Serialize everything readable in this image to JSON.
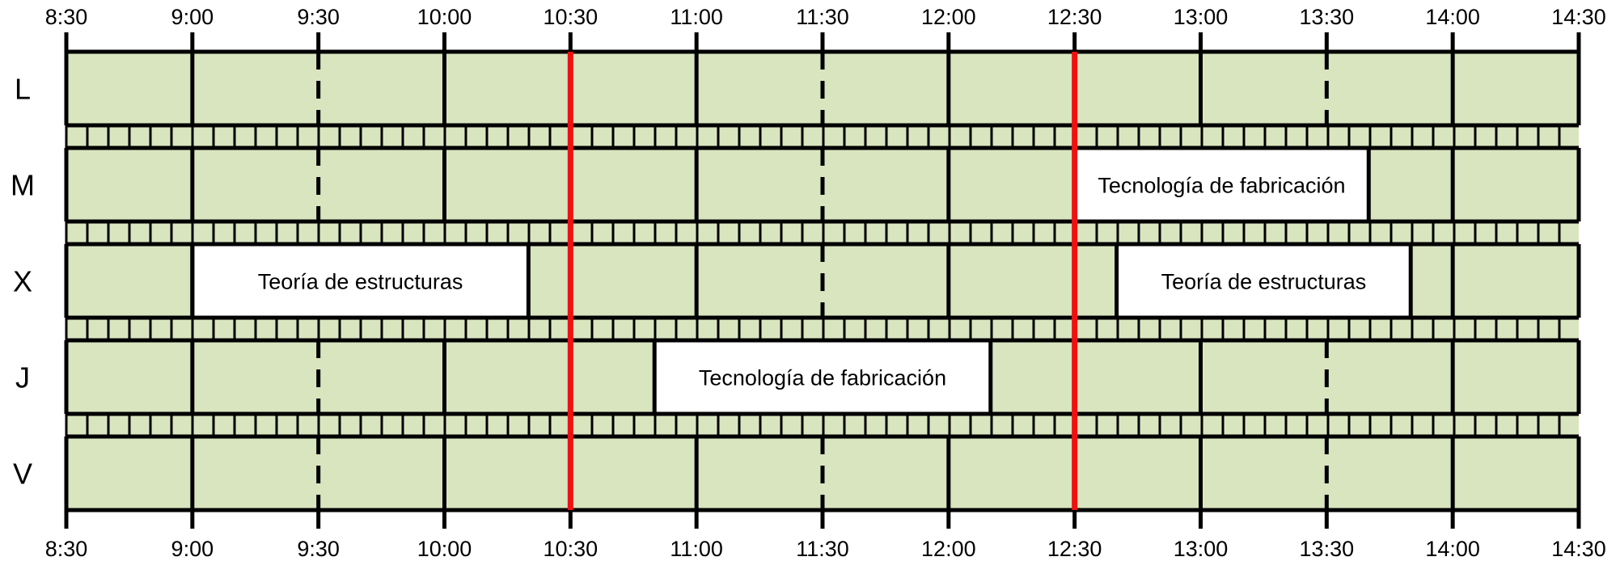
{
  "time_ticks": [
    "8:30",
    "9:00",
    "9:30",
    "10:00",
    "10:30",
    "11:00",
    "11:30",
    "12:00",
    "12:30",
    "13:00",
    "13:30",
    "14:00",
    "14:30"
  ],
  "days": [
    {
      "label": "L",
      "classes": []
    },
    {
      "label": "M",
      "classes": [
        {
          "name": "Tecnología de fabricación",
          "start": "12:30",
          "end": "13:40"
        }
      ]
    },
    {
      "label": "X",
      "classes": [
        {
          "name": "Teoría de estructuras",
          "start": "9:00",
          "end": "10:20"
        },
        {
          "name": "Teoría de estructuras",
          "start": "12:40",
          "end": "13:50"
        }
      ]
    },
    {
      "label": "J",
      "classes": [
        {
          "name": "Tecnología de fabricación",
          "start": "10:50",
          "end": "12:10"
        }
      ]
    },
    {
      "label": "V",
      "classes": []
    }
  ],
  "break_times": [
    "10:30",
    "12:30"
  ],
  "colors": {
    "free_slot": "#d9e5bf",
    "class_block": "#ffffff",
    "grid_line": "#000000",
    "break_line": "#ee1111"
  }
}
